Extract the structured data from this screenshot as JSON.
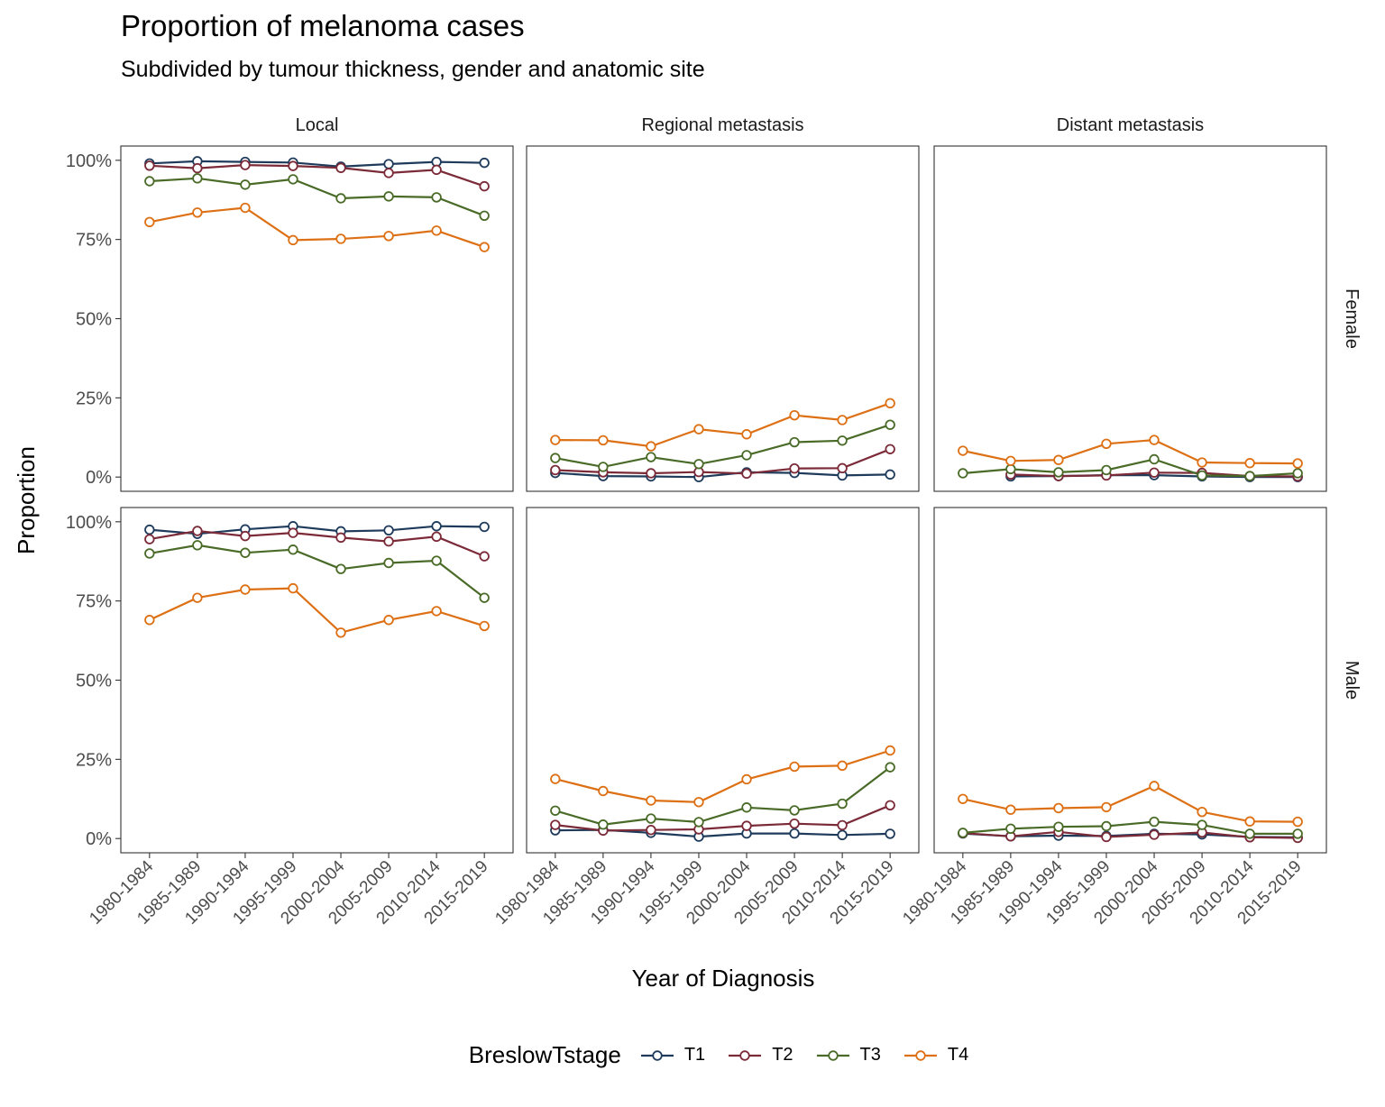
{
  "title": "Proportion of melanoma cases",
  "subtitle": "Subdivided by tumour thickness, gender and anatomic site",
  "chart_data": {
    "type": "line",
    "title": "Proportion of melanoma cases",
    "subtitle": "Subdivided by tumour thickness, gender and anatomic site",
    "xlabel": "Year of Diagnosis",
    "ylabel": "Proportion",
    "ylim": [
      0,
      100
    ],
    "y_ticks": [
      "0%",
      "25%",
      "50%",
      "75%",
      "100%"
    ],
    "y_tick_values": [
      0,
      25,
      50,
      75,
      100
    ],
    "categories": [
      "1980-1984",
      "1985-1989",
      "1990-1994",
      "1995-1999",
      "2000-2004",
      "2005-2009",
      "2010-2014",
      "2015-2019"
    ],
    "columns": [
      "Local",
      "Regional metastasis",
      "Distant metastasis"
    ],
    "rows": [
      "Female",
      "Male"
    ],
    "legend_title": "BreslowTstage",
    "legend_position": "bottom",
    "grid": false,
    "series_meta": [
      {
        "name": "T1",
        "color": "#1f3b5c"
      },
      {
        "name": "T2",
        "color": "#7b2a38"
      },
      {
        "name": "T3",
        "color": "#4a6b28"
      },
      {
        "name": "T4",
        "color": "#dd7014"
      }
    ],
    "panels": [
      {
        "row": "Female",
        "column": "Local",
        "series": [
          {
            "name": "T1",
            "values": [
              99.0,
              99.7,
              99.5,
              99.3,
              98.0,
              98.8,
              99.5,
              99.2
            ]
          },
          {
            "name": "T2",
            "values": [
              98.3,
              97.5,
              98.5,
              98.2,
              97.6,
              96.0,
              97.0,
              91.8
            ]
          },
          {
            "name": "T3",
            "values": [
              93.4,
              94.3,
              92.3,
              94.0,
              88.0,
              88.6,
              88.3,
              82.5
            ]
          },
          {
            "name": "T4",
            "values": [
              80.5,
              83.5,
              85.0,
              74.8,
              75.2,
              76.1,
              77.8,
              72.6
            ]
          }
        ]
      },
      {
        "row": "Female",
        "column": "Regional metastasis",
        "series": [
          {
            "name": "T1",
            "values": [
              1.3,
              0.3,
              0.2,
              0.0,
              1.5,
              1.3,
              0.5,
              0.8
            ]
          },
          {
            "name": "T2",
            "values": [
              2.2,
              1.5,
              1.2,
              1.6,
              1.1,
              2.7,
              2.8,
              8.8
            ]
          },
          {
            "name": "T3",
            "values": [
              6.0,
              3.2,
              6.3,
              4.1,
              6.9,
              11.0,
              11.5,
              16.5
            ]
          },
          {
            "name": "T4",
            "values": [
              11.7,
              11.6,
              9.7,
              15.1,
              13.5,
              19.5,
              18.0,
              23.3
            ]
          }
        ]
      },
      {
        "row": "Female",
        "column": "Distant metastasis",
        "series": [
          {
            "name": "T1",
            "values": [
              null,
              0.2,
              0.3,
              0.6,
              0.6,
              0.2,
              0.0,
              0.0
            ]
          },
          {
            "name": "T2",
            "values": [
              null,
              0.8,
              0.3,
              0.5,
              1.4,
              1.3,
              0.3,
              0.2
            ]
          },
          {
            "name": "T3",
            "values": [
              1.2,
              2.5,
              1.5,
              2.2,
              5.6,
              0.5,
              0.3,
              1.2
            ]
          },
          {
            "name": "T4",
            "values": [
              8.3,
              5.1,
              5.4,
              10.5,
              11.7,
              4.6,
              4.4,
              4.3
            ]
          }
        ]
      },
      {
        "row": "Male",
        "column": "Local",
        "series": [
          {
            "name": "T1",
            "values": [
              97.5,
              96.2,
              97.6,
              98.6,
              97.0,
              97.3,
              98.6,
              98.4
            ]
          },
          {
            "name": "T2",
            "values": [
              94.5,
              97.1,
              95.5,
              96.5,
              95.0,
              93.8,
              95.3,
              89.1
            ]
          },
          {
            "name": "T3",
            "values": [
              90.0,
              92.6,
              90.2,
              91.2,
              85.1,
              87.0,
              87.7,
              76.0
            ]
          },
          {
            "name": "T4",
            "values": [
              69.0,
              76.0,
              78.6,
              79.0,
              65.0,
              69.0,
              71.8,
              67.1
            ]
          }
        ]
      },
      {
        "row": "Male",
        "column": "Regional metastasis",
        "series": [
          {
            "name": "T1",
            "values": [
              2.6,
              2.7,
              1.8,
              0.6,
              1.6,
              1.6,
              1.1,
              1.5
            ]
          },
          {
            "name": "T2",
            "values": [
              4.3,
              2.5,
              2.7,
              2.9,
              4.0,
              4.7,
              4.2,
              10.5
            ]
          },
          {
            "name": "T3",
            "values": [
              8.8,
              4.4,
              6.3,
              5.2,
              9.8,
              8.9,
              11.0,
              22.5
            ]
          },
          {
            "name": "T4",
            "values": [
              18.8,
              15.0,
              12.0,
              11.5,
              18.7,
              22.7,
              23.0,
              27.8
            ]
          }
        ]
      },
      {
        "row": "Male",
        "column": "Distant metastasis",
        "series": [
          {
            "name": "T1",
            "values": [
              1.6,
              0.7,
              0.9,
              0.8,
              1.5,
              1.3,
              0.5,
              0.4
            ]
          },
          {
            "name": "T2",
            "values": [
              1.7,
              0.7,
              2.1,
              0.5,
              1.2,
              1.9,
              0.4,
              0.2
            ]
          },
          {
            "name": "T3",
            "values": [
              1.8,
              3.1,
              3.7,
              3.9,
              5.3,
              4.3,
              1.5,
              1.5
            ]
          },
          {
            "name": "T4",
            "values": [
              12.5,
              9.1,
              9.6,
              9.9,
              16.6,
              8.4,
              5.4,
              5.3
            ]
          }
        ]
      }
    ]
  }
}
